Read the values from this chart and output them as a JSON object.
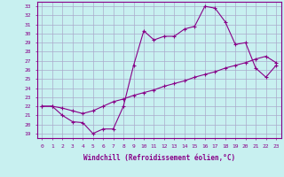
{
  "xlabel": "Windchill (Refroidissement éolien,°C)",
  "bg_color": "#c8f0f0",
  "line_color": "#880088",
  "grid_color": "#aaaacc",
  "xlim": [
    -0.5,
    23.5
  ],
  "ylim": [
    18.5,
    33.5
  ],
  "xticks": [
    0,
    1,
    2,
    3,
    4,
    5,
    6,
    7,
    8,
    9,
    10,
    11,
    12,
    13,
    14,
    15,
    16,
    17,
    18,
    19,
    20,
    21,
    22,
    23
  ],
  "yticks": [
    19,
    20,
    21,
    22,
    23,
    24,
    25,
    26,
    27,
    28,
    29,
    30,
    31,
    32,
    33
  ],
  "line1_x": [
    0,
    1,
    2,
    3,
    4,
    5,
    6,
    7,
    8,
    9,
    10,
    11,
    12,
    13,
    14,
    15,
    16,
    17,
    18,
    19,
    20,
    21,
    22,
    23
  ],
  "line1_y": [
    22,
    22,
    21,
    20.3,
    20.2,
    19,
    19.5,
    19.5,
    22,
    26.5,
    30.3,
    29.3,
    29.7,
    29.7,
    30.5,
    30.8,
    33,
    32.8,
    31.3,
    28.8,
    29,
    26.2,
    25.2,
    26.5
  ],
  "line2_x": [
    0,
    1,
    2,
    3,
    4,
    5,
    6,
    7,
    8,
    9,
    10,
    11,
    12,
    13,
    14,
    15,
    16,
    17,
    18,
    19,
    20,
    21,
    22,
    23
  ],
  "line2_y": [
    22,
    22,
    21.8,
    21.5,
    21.2,
    21.5,
    22,
    22.5,
    22.8,
    23.2,
    23.5,
    23.8,
    24.2,
    24.5,
    24.8,
    25.2,
    25.5,
    25.8,
    26.2,
    26.5,
    26.8,
    27.2,
    27.5,
    26.8
  ]
}
